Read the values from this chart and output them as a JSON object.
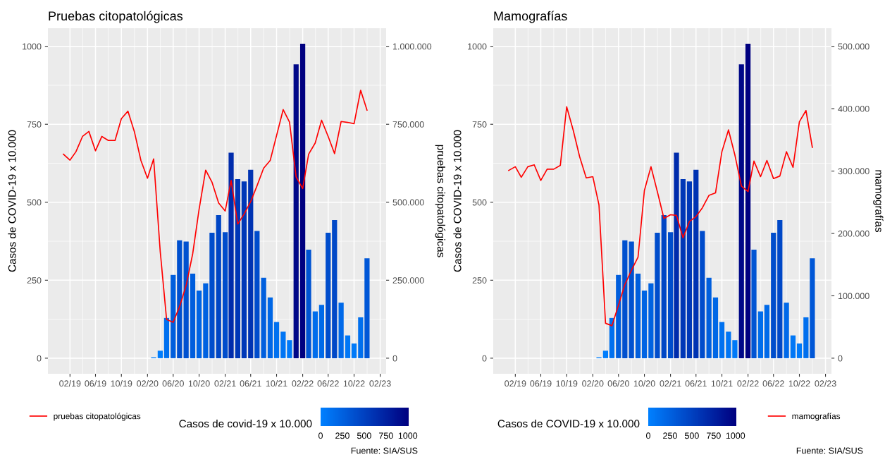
{
  "chart_data": [
    {
      "type": "bar",
      "title": "Pruebas citopatológicas",
      "ylabel": "Casos de COVID-19 x 10.000",
      "y2label": "pruebas citopatológicas",
      "clabel": "Casos de covid-19 x 10.000",
      "xlim": [
        "2018-10-20",
        "2023-03-01"
      ],
      "xticks": [
        {
          "value": "2019-02-01",
          "label": "02/19"
        },
        {
          "value": "2019-06-01",
          "label": "06/19"
        },
        {
          "value": "2019-10-01",
          "label": "10/19"
        },
        {
          "value": "2020-02-01",
          "label": "02/20"
        },
        {
          "value": "2020-06-01",
          "label": "06/20"
        },
        {
          "value": "2020-10-01",
          "label": "10/20"
        },
        {
          "value": "2021-02-01",
          "label": "02/21"
        },
        {
          "value": "2021-06-01",
          "label": "06/21"
        },
        {
          "value": "2021-10-01",
          "label": "10/21"
        },
        {
          "value": "2022-02-01",
          "label": "02/22"
        },
        {
          "value": "2022-06-01",
          "label": "06/22"
        },
        {
          "value": "2022-10-01",
          "label": "10/22"
        },
        {
          "value": "2023-02-01",
          "label": "02/23"
        }
      ],
      "ylim": [
        -50,
        1058
      ],
      "yticks": [
        0,
        250,
        500,
        750,
        1000
      ],
      "y2lim": [
        -50000,
        1058000
      ],
      "y2ticks": [
        {
          "value": 0,
          "label": "0"
        },
        {
          "value": 250000,
          "label": "250.000"
        },
        {
          "value": 500000,
          "label": "500.000"
        },
        {
          "value": 750000,
          "label": "750.000"
        },
        {
          "value": 1000000,
          "label": "1.000.000"
        }
      ],
      "clim": [
        0,
        1010
      ],
      "cticks": [
        0,
        250,
        500,
        750,
        1000
      ],
      "grid": true,
      "legend": "bottom left",
      "annotations": [
        "Fuente: SIA/SUS"
      ],
      "series": [
        {
          "x": [
            "2020-03",
            "2020-04",
            "2020-05",
            "2020-06",
            "2020-07",
            "2020-08",
            "2020-09",
            "2020-10",
            "2020-11",
            "2020-12",
            "2021-01",
            "2021-02",
            "2021-03",
            "2021-04",
            "2021-05",
            "2021-06",
            "2021-07",
            "2021-08",
            "2021-09",
            "2021-10",
            "2021-11",
            "2021-12",
            "2022-01",
            "2022-02",
            "2022-03",
            "2022-04",
            "2022-05",
            "2022-06",
            "2022-07",
            "2022-08",
            "2022-09",
            "2022-10",
            "2022-11",
            "2022-12"
          ],
          "values": [
            3,
            24,
            129,
            267,
            378,
            374,
            271,
            217,
            240,
            402,
            459,
            404,
            659,
            574,
            567,
            604,
            408,
            258,
            195,
            116,
            85,
            58,
            942,
            1008,
            348,
            150,
            171,
            402,
            443,
            178,
            73,
            47,
            131,
            320
          ],
          "colors": [
            "#0080ff",
            "#007dfc",
            "#0070ef",
            "#005edd",
            "#0050cf",
            "#0051d0",
            "#005edd",
            "#0064e4",
            "#0062e1",
            "#004dcc",
            "#0046c5",
            "#004dcc",
            "#002cac",
            "#0037b7",
            "#0038b8",
            "#0033b3",
            "#004ccc",
            "#005fde",
            "#0067e6",
            "#0071f0",
            "#0075f4",
            "#0079f8",
            "#000888",
            "#000080",
            "#0054d3",
            "#006dec",
            "#006ae9",
            "#004dcc",
            "#0048c7",
            "#0069e9",
            "#0077f6",
            "#007af9",
            "#006fee",
            "#0057d7"
          ]
        },
        {
          "type": "line",
          "name": "pruebas citopatológicas",
          "color": "#ff0000",
          "axis": "y2",
          "x": [
            "2019-01",
            "2019-02",
            "2019-03",
            "2019-04",
            "2019-05",
            "2019-06",
            "2019-07",
            "2019-08",
            "2019-09",
            "2019-10",
            "2019-11",
            "2019-12",
            "2020-01",
            "2020-02",
            "2020-03",
            "2020-04",
            "2020-05",
            "2020-06",
            "2020-07",
            "2020-08",
            "2020-09",
            "2020-10",
            "2020-11",
            "2020-12",
            "2021-01",
            "2021-02",
            "2021-03",
            "2021-04",
            "2021-05",
            "2021-06",
            "2021-07",
            "2021-08",
            "2021-09",
            "2021-10",
            "2021-11",
            "2021-12",
            "2022-01",
            "2022-02",
            "2022-03",
            "2022-04",
            "2022-05",
            "2022-06",
            "2022-07",
            "2022-08",
            "2022-09",
            "2022-10",
            "2022-11",
            "2022-12"
          ],
          "values": [
            654000,
            635000,
            662000,
            711000,
            727000,
            665000,
            711000,
            698000,
            698000,
            768000,
            792000,
            727000,
            634000,
            577000,
            639000,
            342000,
            124000,
            115000,
            165000,
            233000,
            335000,
            477000,
            603000,
            564000,
            498000,
            472000,
            570000,
            430000,
            462000,
            502000,
            553000,
            609000,
            634000,
            714000,
            797000,
            757000,
            581000,
            544000,
            654000,
            690000,
            763000,
            711000,
            656000,
            759000,
            756000,
            752000,
            859000,
            795000
          ]
        }
      ]
    },
    {
      "type": "bar",
      "title": "Mamografías",
      "ylabel": "Casos de COVID-19 x 10.000",
      "y2label": "mamografías",
      "clabel": "Casos de COVID-19 x 10.000",
      "xlim": [
        "2018-10-20",
        "2023-03-01"
      ],
      "xticks": [
        {
          "value": "2019-02-01",
          "label": "02/19"
        },
        {
          "value": "2019-06-01",
          "label": "06/19"
        },
        {
          "value": "2019-10-01",
          "label": "10/19"
        },
        {
          "value": "2020-02-01",
          "label": "02/20"
        },
        {
          "value": "2020-06-01",
          "label": "06/20"
        },
        {
          "value": "2020-10-01",
          "label": "10/20"
        },
        {
          "value": "2021-02-01",
          "label": "02/21"
        },
        {
          "value": "2021-06-01",
          "label": "06/21"
        },
        {
          "value": "2021-10-01",
          "label": "10/21"
        },
        {
          "value": "2022-02-01",
          "label": "02/22"
        },
        {
          "value": "2022-06-01",
          "label": "06/22"
        },
        {
          "value": "2022-10-01",
          "label": "10/22"
        },
        {
          "value": "2023-02-01",
          "label": "02/23"
        }
      ],
      "ylim": [
        -50,
        1058
      ],
      "yticks": [
        0,
        250,
        500,
        750,
        1000
      ],
      "y2lim": [
        -25000,
        529000
      ],
      "y2ticks": [
        {
          "value": 0,
          "label": "0"
        },
        {
          "value": 100000,
          "label": "100.000"
        },
        {
          "value": 200000,
          "label": "200.000"
        },
        {
          "value": 300000,
          "label": "300.000"
        },
        {
          "value": 400000,
          "label": "400.000"
        },
        {
          "value": 500000,
          "label": "500.000"
        }
      ],
      "clim": [
        0,
        1010
      ],
      "cticks": [
        0,
        250,
        500,
        750,
        1000
      ],
      "grid": true,
      "legend": "bottom right",
      "annotations": [
        "Fuente: SIA/SUS"
      ],
      "series": [
        {
          "x": [
            "2020-03",
            "2020-04",
            "2020-05",
            "2020-06",
            "2020-07",
            "2020-08",
            "2020-09",
            "2020-10",
            "2020-11",
            "2020-12",
            "2021-01",
            "2021-02",
            "2021-03",
            "2021-04",
            "2021-05",
            "2021-06",
            "2021-07",
            "2021-08",
            "2021-09",
            "2021-10",
            "2021-11",
            "2021-12",
            "2022-01",
            "2022-02",
            "2022-03",
            "2022-04",
            "2022-05",
            "2022-06",
            "2022-07",
            "2022-08",
            "2022-09",
            "2022-10",
            "2022-11",
            "2022-12"
          ],
          "values": [
            3,
            24,
            129,
            267,
            378,
            374,
            271,
            217,
            240,
            402,
            459,
            404,
            659,
            574,
            567,
            604,
            408,
            258,
            195,
            116,
            85,
            58,
            942,
            1008,
            348,
            150,
            171,
            402,
            443,
            178,
            73,
            47,
            131,
            320
          ],
          "colors": [
            "#0080ff",
            "#007dfc",
            "#0070ef",
            "#005edd",
            "#0050cf",
            "#0051d0",
            "#005edd",
            "#0064e4",
            "#0062e1",
            "#004dcc",
            "#0046c5",
            "#004dcc",
            "#002cac",
            "#0037b7",
            "#0038b8",
            "#0033b3",
            "#004ccc",
            "#005fde",
            "#0067e6",
            "#0071f0",
            "#0075f4",
            "#0079f8",
            "#000888",
            "#000080",
            "#0054d3",
            "#006dec",
            "#006ae9",
            "#004dcc",
            "#0048c7",
            "#0069e9",
            "#0077f6",
            "#007af9",
            "#006fee",
            "#0057d7"
          ]
        },
        {
          "type": "line",
          "name": "mamografías",
          "color": "#ff0000",
          "axis": "y2",
          "x": [
            "2019-01",
            "2019-02",
            "2019-03",
            "2019-04",
            "2019-05",
            "2019-06",
            "2019-07",
            "2019-08",
            "2019-09",
            "2019-10",
            "2019-11",
            "2019-12",
            "2020-01",
            "2020-02",
            "2020-03",
            "2020-04",
            "2020-05",
            "2020-06",
            "2020-07",
            "2020-08",
            "2020-09",
            "2020-10",
            "2020-11",
            "2020-12",
            "2021-01",
            "2021-02",
            "2021-03",
            "2021-04",
            "2021-05",
            "2021-06",
            "2021-07",
            "2021-08",
            "2021-09",
            "2021-10",
            "2021-11",
            "2021-12",
            "2022-01",
            "2022-02",
            "2022-03",
            "2022-04",
            "2022-05",
            "2022-06",
            "2022-07",
            "2022-08",
            "2022-09",
            "2022-10",
            "2022-11",
            "2022-12"
          ],
          "values": [
            301000,
            307000,
            290000,
            307000,
            310000,
            285000,
            303000,
            303000,
            309000,
            403000,
            365000,
            323000,
            289000,
            291000,
            246000,
            56000,
            52000,
            85000,
            118000,
            141000,
            162000,
            269000,
            307000,
            267000,
            224000,
            230000,
            229000,
            193000,
            219000,
            227000,
            241000,
            261000,
            265000,
            331000,
            366000,
            326000,
            276000,
            267000,
            316000,
            291000,
            317000,
            288000,
            292000,
            331000,
            306000,
            379000,
            397000,
            338000
          ]
        }
      ]
    }
  ]
}
